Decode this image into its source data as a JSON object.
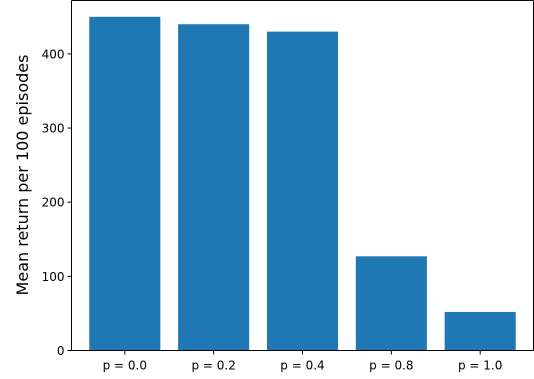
{
  "chart_data": {
    "type": "bar",
    "title": "",
    "xlabel": "",
    "ylabel": "Mean return per 100 episodes",
    "categories": [
      "p = 0.0",
      "p = 0.2",
      "p = 0.4",
      "p = 0.8",
      "p = 1.0"
    ],
    "values": [
      450,
      440,
      430,
      127,
      52
    ],
    "ylim": [
      0,
      472
    ],
    "yticks": [
      0,
      100,
      200,
      300,
      400
    ],
    "grid": false,
    "legend": "none",
    "bar_color": "#1f77b4"
  }
}
